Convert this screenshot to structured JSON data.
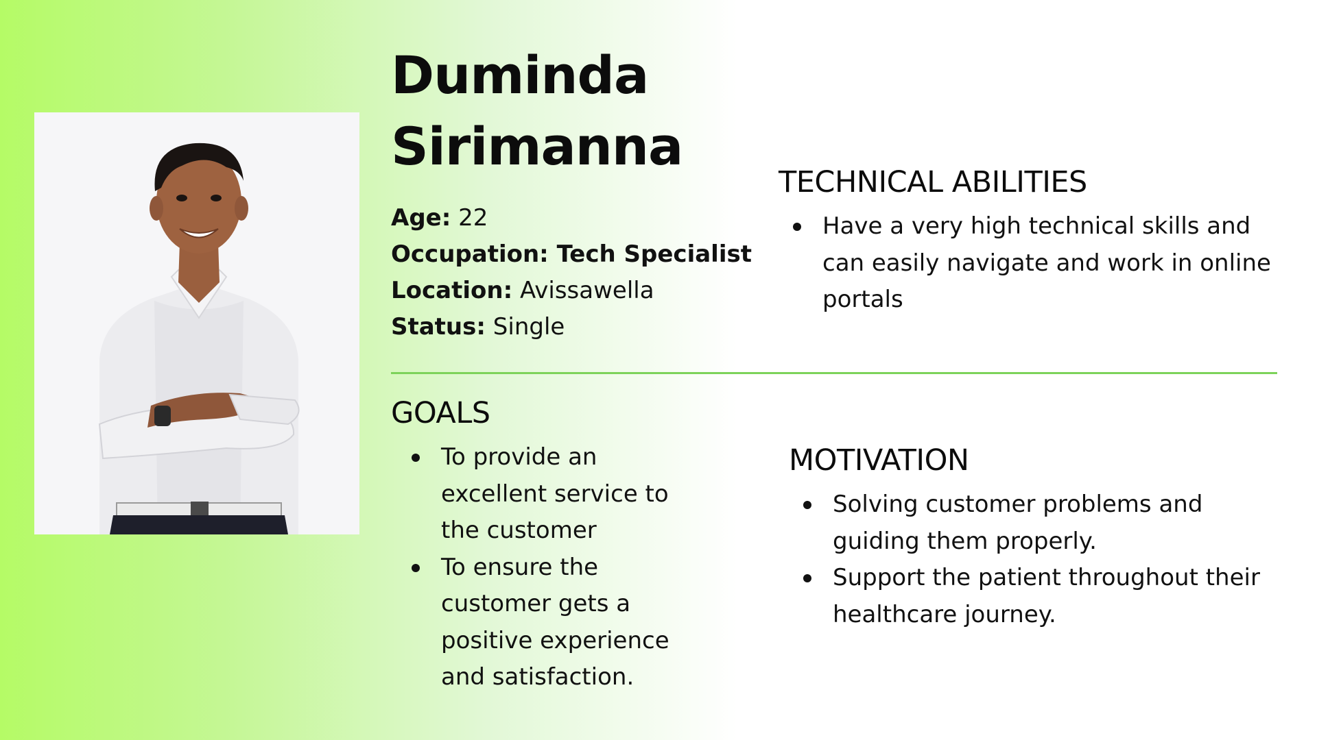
{
  "persona": {
    "name_line1": "Duminda",
    "name_line2": "Sirimanna",
    "details": [
      {
        "label": "Age:",
        "value": " 22"
      },
      {
        "label": "Occupation: Tech Specialist",
        "value": ""
      },
      {
        "label": "Location:",
        "value": " Avissawella"
      },
      {
        "label": "Status:",
        "value": " Single"
      }
    ]
  },
  "sections": {
    "technical": {
      "title": "TECHNICAL ABILITIES",
      "items": [
        "Have a very high technical skills and can easily navigate and work in online portals"
      ]
    },
    "goals": {
      "title": "GOALS",
      "items": [
        "To provide an excellent service to the customer",
        "To ensure the customer gets a positive experience and satisfaction."
      ]
    },
    "motivation": {
      "title": "MOTIVATION",
      "items": [
        "Solving customer problems and guiding them properly.",
        "Support  the patient throughout their healthcare journey."
      ]
    }
  },
  "colors": {
    "gradient_start": "#b5fb66",
    "divider": "#7dd35a",
    "text": "#111111"
  },
  "icons": {
    "bullet": "filled-circle"
  }
}
